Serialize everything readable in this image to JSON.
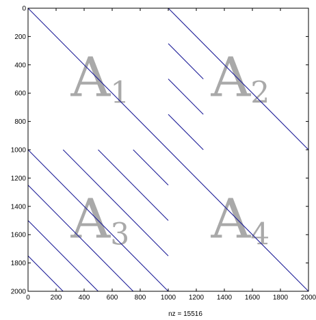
{
  "chart_data": {
    "type": "scatter",
    "plot_style": "sparsity pattern (spy plot)",
    "xlim": [
      0,
      2000
    ],
    "ylim": [
      2000,
      0
    ],
    "y_axis_direction": "reversed (0 at top)",
    "x_ticks": [
      "0",
      "200",
      "400",
      "600",
      "800",
      "1000",
      "1200",
      "1400",
      "1600",
      "1800",
      "2000"
    ],
    "y_ticks": [
      "0",
      "200",
      "400",
      "600",
      "800",
      "1000",
      "1200",
      "1400",
      "1600",
      "1800",
      "2000"
    ],
    "xlabel": "nz = 15516",
    "ylabel": "",
    "grid": false,
    "marker_color": "#1f1f99",
    "nonzero_diagonal_segments": [
      {
        "x": [
          0,
          2000
        ],
        "y": [
          0,
          2000
        ]
      },
      {
        "x": [
          1000,
          2000
        ],
        "y": [
          0,
          1000
        ]
      },
      {
        "x": [
          1000,
          1250
        ],
        "y": [
          250,
          500
        ]
      },
      {
        "x": [
          1000,
          1250
        ],
        "y": [
          500,
          750
        ]
      },
      {
        "x": [
          1000,
          1250
        ],
        "y": [
          750,
          1000
        ]
      },
      {
        "x": [
          0,
          1000
        ],
        "y": [
          1000,
          2000
        ]
      },
      {
        "x": [
          0,
          750
        ],
        "y": [
          1250,
          2000
        ]
      },
      {
        "x": [
          0,
          500
        ],
        "y": [
          1500,
          2000
        ]
      },
      {
        "x": [
          0,
          250
        ],
        "y": [
          1750,
          2000
        ]
      },
      {
        "x": [
          250,
          1000
        ],
        "y": [
          1000,
          1750
        ]
      },
      {
        "x": [
          500,
          1000
        ],
        "y": [
          1000,
          1500
        ]
      },
      {
        "x": [
          750,
          1000
        ],
        "y": [
          1000,
          1250
        ]
      }
    ],
    "block_labels": [
      {
        "main": "A",
        "sub": "1",
        "x_center": 500,
        "y_center": 500
      },
      {
        "main": "A",
        "sub": "2",
        "x_center": 1500,
        "y_center": 500
      },
      {
        "main": "A",
        "sub": "3",
        "x_center": 500,
        "y_center": 1500
      },
      {
        "main": "A",
        "sub": "4",
        "x_center": 1500,
        "y_center": 1500
      }
    ],
    "block_label_color": "#a9a9a9"
  }
}
